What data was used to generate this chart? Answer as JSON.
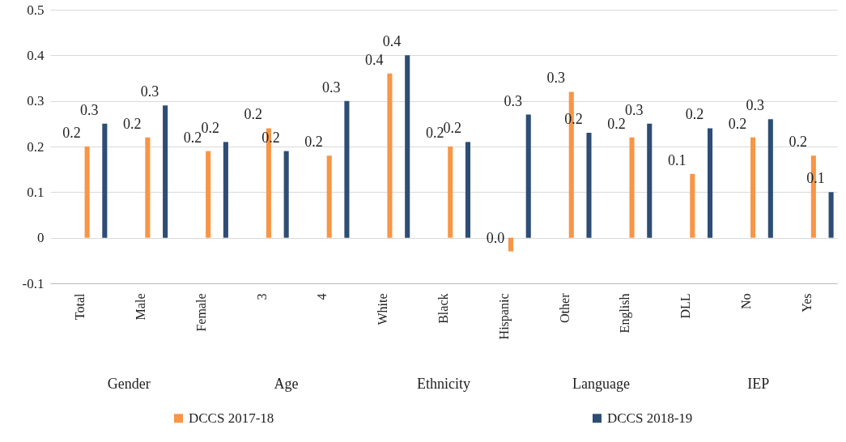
{
  "chart_data": {
    "type": "bar",
    "categories": [
      "Total",
      "Male",
      "Female",
      "3",
      "4",
      "White",
      "Black",
      "Hispanic",
      "Other",
      "English",
      "DLL",
      "No",
      "Yes"
    ],
    "series": [
      {
        "name": "DCCS 2017-18",
        "color": "#f79646",
        "values": [
          0.2,
          0.22,
          0.19,
          0.24,
          0.18,
          0.36,
          0.2,
          -0.03,
          0.32,
          0.22,
          0.14,
          0.22,
          0.18
        ],
        "value_labels": [
          "0.2",
          "0.2",
          "0.2",
          "0.2",
          "0.2",
          "0.4",
          "0.2",
          "0.0",
          "0.3",
          "0.2",
          "0.1",
          "0.2",
          "0.2"
        ]
      },
      {
        "name": "DCCS 2018-19",
        "color": "#2e4d75",
        "values": [
          0.25,
          0.29,
          0.21,
          0.19,
          0.3,
          0.4,
          0.21,
          0.27,
          0.23,
          0.25,
          0.24,
          0.26,
          0.1
        ],
        "value_labels": [
          "0.3",
          "0.3",
          "0.2",
          "0.2",
          "0.3",
          "0.4",
          "0.2",
          "0.3",
          "0.2",
          "0.3",
          "0.2",
          "0.3",
          "0.1"
        ]
      }
    ],
    "annotations": [
      "Gender",
      "Age",
      "Ethnicity",
      "Language",
      "IEP"
    ],
    "ylim": [
      -0.1,
      0.5
    ],
    "yticks": [
      -0.1,
      0,
      0.1,
      0.2,
      0.3,
      0.4,
      0.5
    ],
    "grid": true,
    "legend": "bottom"
  }
}
